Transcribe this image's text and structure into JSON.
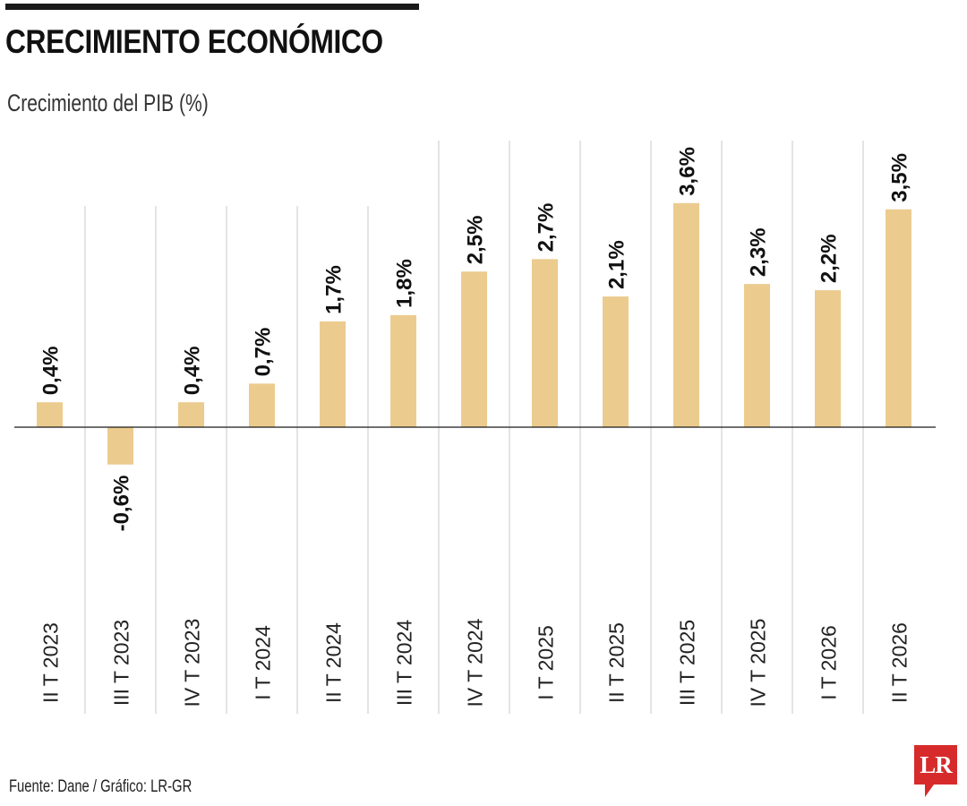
{
  "header": {
    "title": "CRECIMIENTO ECONÓMICO",
    "subtitle": "Crecimiento del PIB (%)"
  },
  "footer": {
    "source": "Fuente: Dane / Gráfico: LR-GR",
    "logo_text": "LR"
  },
  "colors": {
    "bar": "#ECCB8E",
    "rule": "#1a1a1a",
    "gridline": "#c8c8c8",
    "logo": "#D72B2B"
  },
  "icons": {
    "logo": "lr-logo-icon"
  },
  "chart_data": {
    "type": "bar",
    "title": "Crecimiento del PIB (%)",
    "categories": [
      "II T 2023",
      "III T 2023",
      "IV T 2023",
      "I T 2024",
      "II T 2024",
      "III T 2024",
      "IV T 2024",
      "I T 2025",
      "II T 2025",
      "III T 2025",
      "IV T 2025",
      "I T 2026",
      "II T 2026"
    ],
    "values": [
      0.4,
      -0.6,
      0.4,
      0.7,
      1.7,
      1.8,
      2.5,
      2.7,
      2.1,
      3.6,
      2.3,
      2.2,
      3.5
    ],
    "data_labels": [
      "0,4%",
      "-0,6%",
      "0,4%",
      "0,7%",
      "1,7%",
      "1,8%",
      "2,5%",
      "2,7%",
      "2,1%",
      "3,6%",
      "2,3%",
      "2,2%",
      "3,5%"
    ],
    "xlabel": "",
    "ylabel": "",
    "ylim": [
      -2,
      4
    ],
    "grid": true,
    "legend": "none"
  }
}
